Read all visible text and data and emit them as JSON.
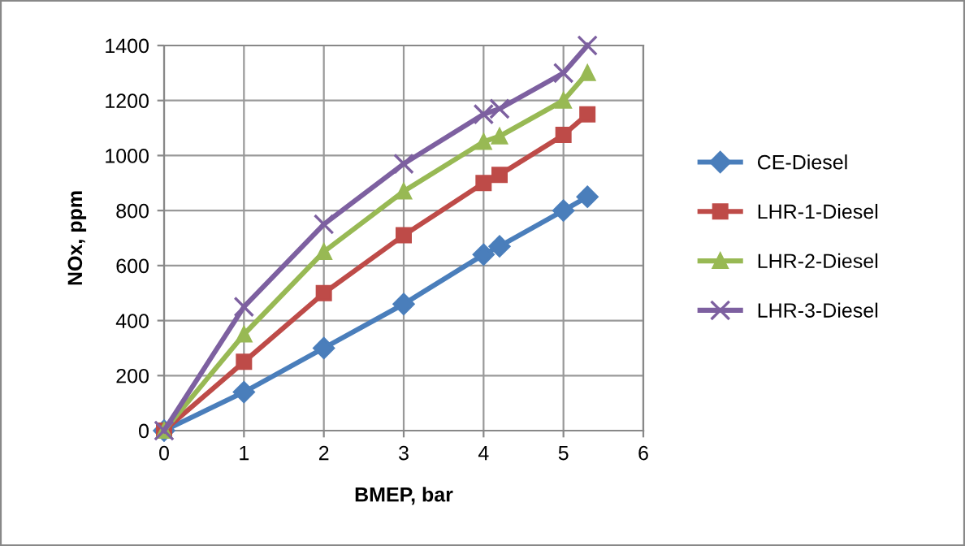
{
  "chart_data": {
    "type": "line",
    "xlabel": "BMEP, bar",
    "ylabel": "NOx, ppm",
    "x": [
      0,
      1,
      2,
      3,
      4,
      4.2,
      5,
      5.3
    ],
    "series": [
      {
        "name": "CE-Diesel",
        "color": "#4a7ebb",
        "marker": "diamond",
        "values": [
          0,
          140,
          300,
          460,
          640,
          670,
          800,
          850
        ]
      },
      {
        "name": "LHR-1-Diesel",
        "color": "#be4b48",
        "marker": "square",
        "values": [
          0,
          250,
          500,
          710,
          900,
          930,
          1075,
          1150
        ]
      },
      {
        "name": "LHR-2-Diesel",
        "color": "#98b954",
        "marker": "triangle",
        "values": [
          0,
          350,
          650,
          870,
          1050,
          1070,
          1200,
          1300
        ]
      },
      {
        "name": "LHR-3-Diesel",
        "color": "#7d60a0",
        "marker": "cross",
        "values": [
          0,
          450,
          750,
          970,
          1150,
          1170,
          1300,
          1400
        ]
      }
    ],
    "xlim": [
      0,
      6
    ],
    "xticks": [
      0,
      1,
      2,
      3,
      4,
      5,
      6
    ],
    "ylim": [
      0,
      1400
    ],
    "yticks": [
      0,
      200,
      400,
      600,
      800,
      1000,
      1200,
      1400
    ],
    "grid": true,
    "legend": "right"
  }
}
